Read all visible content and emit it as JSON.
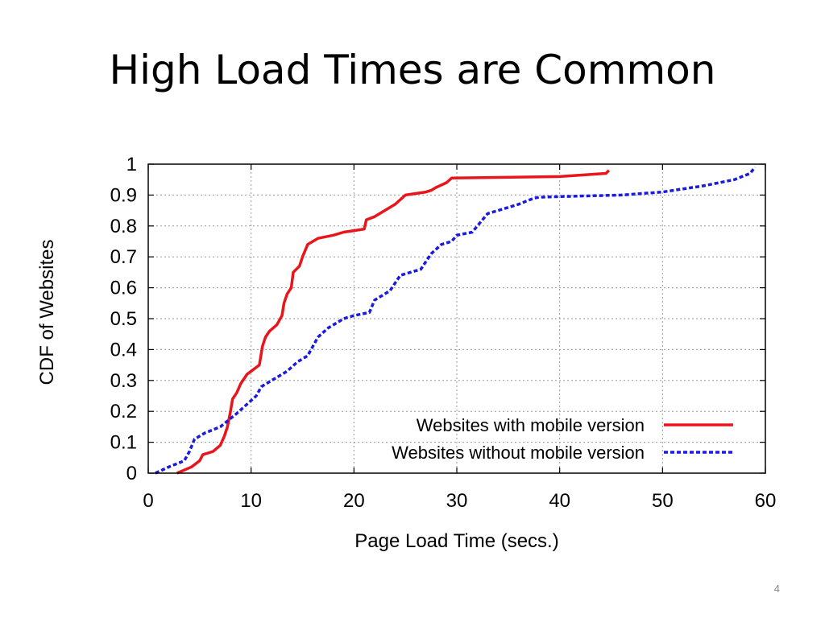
{
  "slide": {
    "title": "High Load Times are Common",
    "page_number": "4"
  },
  "chart_data": {
    "type": "line",
    "title": "",
    "xlabel": "Page Load Time (secs.)",
    "ylabel": "CDF of Websites",
    "xlim": [
      0,
      60
    ],
    "ylim": [
      0,
      1
    ],
    "xticks": [
      0,
      10,
      20,
      30,
      40,
      50,
      60
    ],
    "yticks": [
      0,
      0.1,
      0.2,
      0.3,
      0.4,
      0.5,
      0.6,
      0.7,
      0.8,
      0.9,
      1
    ],
    "ytick_labels": [
      "0",
      "0.1",
      "0.2",
      "0.3",
      "0.4",
      "0.5",
      "0.6",
      "0.7",
      "0.8",
      "0.9",
      "1"
    ],
    "grid": true,
    "legend_position": "bottom-right",
    "series": [
      {
        "name": "Websites with mobile version",
        "color": "#e8161b",
        "style": "solid",
        "x": [
          2.8,
          4.2,
          5.0,
          5.3,
          6.3,
          7.0,
          7.4,
          7.7,
          8.0,
          8.2,
          8.6,
          9.0,
          9.6,
          10.0,
          10.8,
          11.1,
          11.4,
          11.8,
          12.5,
          13.0,
          13.2,
          13.5,
          13.9,
          14.1,
          14.7,
          15.0,
          15.5,
          16.5,
          18.0,
          19.0,
          20.0,
          21.0,
          21.2,
          22.0,
          22.5,
          24.0,
          25.0,
          27.0,
          27.5,
          28.0,
          29.0,
          29.5,
          40.0,
          44.5,
          44.8
        ],
        "y": [
          0.0,
          0.02,
          0.04,
          0.06,
          0.07,
          0.09,
          0.12,
          0.15,
          0.2,
          0.24,
          0.26,
          0.29,
          0.32,
          0.33,
          0.35,
          0.41,
          0.44,
          0.46,
          0.48,
          0.51,
          0.55,
          0.58,
          0.6,
          0.65,
          0.67,
          0.7,
          0.74,
          0.76,
          0.77,
          0.78,
          0.785,
          0.79,
          0.82,
          0.83,
          0.84,
          0.87,
          0.9,
          0.91,
          0.915,
          0.925,
          0.94,
          0.955,
          0.96,
          0.97,
          0.98
        ]
      },
      {
        "name": "Websites without mobile version",
        "color": "#1a1ae0",
        "style": "dashed",
        "x": [
          0.7,
          2.0,
          3.5,
          4.0,
          4.5,
          5.5,
          7.0,
          8.5,
          9.5,
          10.5,
          11.0,
          12.0,
          13.5,
          14.5,
          15.5,
          16.5,
          17.5,
          19.0,
          20.0,
          21.5,
          22.0,
          23.5,
          24.5,
          26.5,
          27.5,
          28.5,
          29.5,
          30.0,
          31.5,
          32.0,
          33.0,
          34.0,
          35.0,
          36.0,
          37.5,
          38.0,
          40.0,
          46.0,
          50.0,
          54.0,
          57.0,
          58.5,
          59.0
        ],
        "y": [
          0.0,
          0.02,
          0.04,
          0.07,
          0.11,
          0.13,
          0.15,
          0.19,
          0.22,
          0.25,
          0.28,
          0.3,
          0.33,
          0.36,
          0.38,
          0.44,
          0.47,
          0.5,
          0.51,
          0.52,
          0.56,
          0.59,
          0.64,
          0.66,
          0.71,
          0.74,
          0.75,
          0.77,
          0.78,
          0.8,
          0.84,
          0.85,
          0.86,
          0.87,
          0.89,
          0.893,
          0.895,
          0.9,
          0.91,
          0.93,
          0.95,
          0.97,
          0.99
        ]
      }
    ]
  }
}
